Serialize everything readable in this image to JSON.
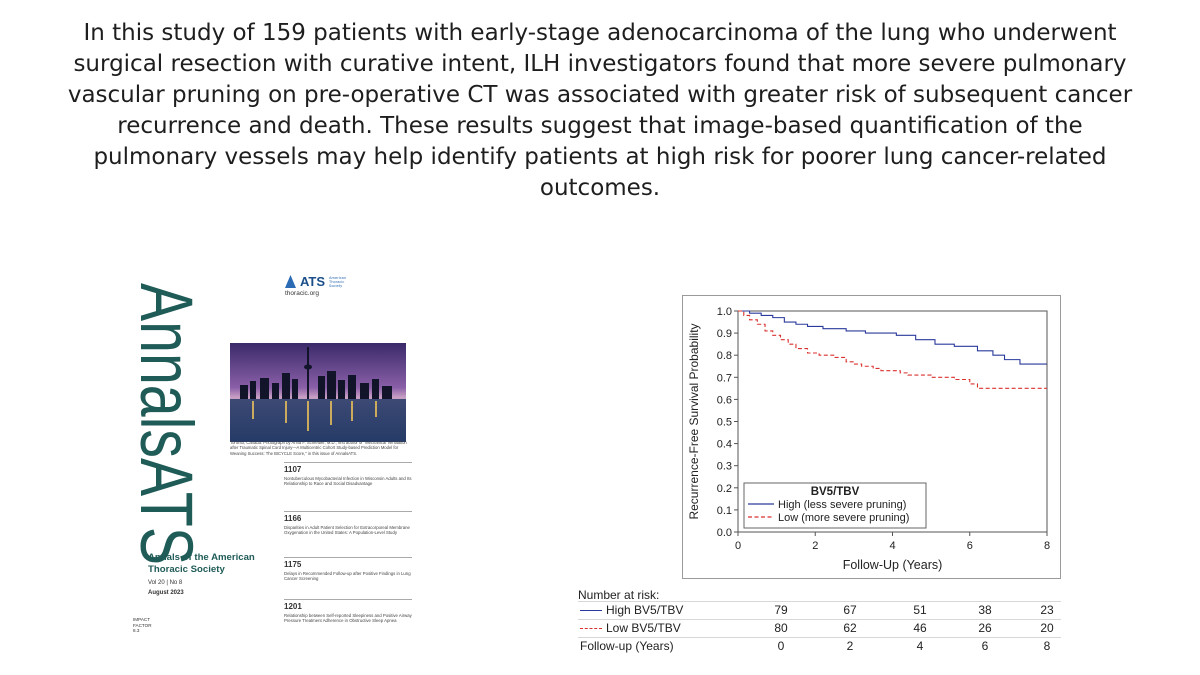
{
  "summary": {
    "text": "In this study of 159 patients with early-stage adenocarcinoma of the lung who underwent surgical resection with curative intent, ILH investigators found that more severe pulmonary vascular pruning on pre-operative CT was associated with greater risk of subsequent cancer recurrence and death.  These results suggest that image-based quantification of the pulmonary vessels may help identify patients at high risk for poorer lung cancer-related outcomes."
  },
  "cover": {
    "title": "AnnalsATS",
    "publisher_mark": "ATS",
    "publisher_small": "American Thoracic Society",
    "site": "thoracic.org",
    "photo_caption": "Toronto, Canada. Photograph by Anna F. Schreiber, M.D., first author of \"Mechanical Ventilation after Traumatic Spinal Cord Injury—A Multicentric Cohort Study-based Prediction Model for Weaning Success: The BICYCLE Score,\" in this issue of AnnalsATS.",
    "toc": [
      {
        "page": "1107",
        "title": "Nontuberculous Mycobacterial Infection in Wisconsin Adults and Its Relationship to Race and Social Disadvantage"
      },
      {
        "page": "1166",
        "title": "Disparities in Adult Patient Selection for Extracorporeal Membrane Oxygenation in the United States: A Population-Level Study"
      },
      {
        "page": "1175",
        "title": "Delays in Recommended Follow-up after Positive Findings in Lung Cancer Screening"
      },
      {
        "page": "1201",
        "title": "Relationship between Self-reported Sleepiness and Positive Airway Pressure Treatment Adherence in Obstructive Sleep Apnea"
      }
    ],
    "journal_name": "Annals of the American Thoracic Society",
    "volume_issue": "Vol 20 | No 8",
    "date": "August 2023",
    "impact_label": "IMPACT FACTOR",
    "impact_value": "8.3",
    "colors": {
      "title_green": "#1f5b57",
      "ats_blue": "#1a4f8a"
    }
  },
  "chart_data": {
    "type": "line",
    "subtype": "kaplan-meier-step",
    "title": "",
    "xlabel": "Follow-Up (Years)",
    "ylabel": "Recurrence-Free Survival Probability",
    "xlim": [
      0,
      8
    ],
    "ylim": [
      0,
      1.0
    ],
    "x_ticks": [
      0,
      2,
      4,
      6,
      8
    ],
    "y_ticks": [
      0.0,
      0.1,
      0.2,
      0.3,
      0.4,
      0.5,
      0.6,
      0.7,
      0.8,
      0.9,
      1.0
    ],
    "grid": false,
    "legend": {
      "title": "BV5/TBV",
      "placement": "bottom-left"
    },
    "series": [
      {
        "name": "High (less severe pruning)",
        "color": "#2a3a9c",
        "style": "solid",
        "x": [
          0,
          0.3,
          0.6,
          0.9,
          1.2,
          1.5,
          1.8,
          2.2,
          2.8,
          3.3,
          4.1,
          4.6,
          5.1,
          5.6,
          6.2,
          6.6,
          6.9,
          7.3,
          8.0
        ],
        "y": [
          1.0,
          0.99,
          0.98,
          0.97,
          0.95,
          0.94,
          0.93,
          0.92,
          0.91,
          0.9,
          0.89,
          0.87,
          0.85,
          0.84,
          0.82,
          0.8,
          0.78,
          0.76,
          0.76
        ]
      },
      {
        "name": "Low (more severe pruning)",
        "color": "#d9322e",
        "style": "dashed",
        "x": [
          0,
          0.15,
          0.3,
          0.5,
          0.7,
          0.9,
          1.1,
          1.3,
          1.5,
          1.8,
          2.1,
          2.5,
          2.8,
          3.0,
          3.2,
          3.5,
          3.7,
          4.0,
          4.2,
          4.4,
          5.0,
          5.6,
          6.0,
          6.2,
          6.5,
          8.0
        ],
        "y": [
          1.0,
          0.98,
          0.96,
          0.94,
          0.91,
          0.89,
          0.87,
          0.85,
          0.83,
          0.81,
          0.8,
          0.79,
          0.77,
          0.76,
          0.75,
          0.74,
          0.73,
          0.73,
          0.72,
          0.71,
          0.7,
          0.69,
          0.67,
          0.65,
          0.65,
          0.65
        ]
      }
    ]
  },
  "risk_table": {
    "title": "Number at risk:",
    "rows": [
      {
        "label": "High BV5/TBV",
        "style": "solid",
        "values": [
          "79",
          "67",
          "51",
          "38",
          "23"
        ]
      },
      {
        "label": "Low BV5/TBV",
        "style": "dashed",
        "values": [
          "80",
          "62",
          "46",
          "26",
          "20"
        ]
      }
    ],
    "footer_label": "Follow-up (Years)",
    "footer_values": [
      "0",
      "2",
      "4",
      "6",
      "8"
    ]
  }
}
